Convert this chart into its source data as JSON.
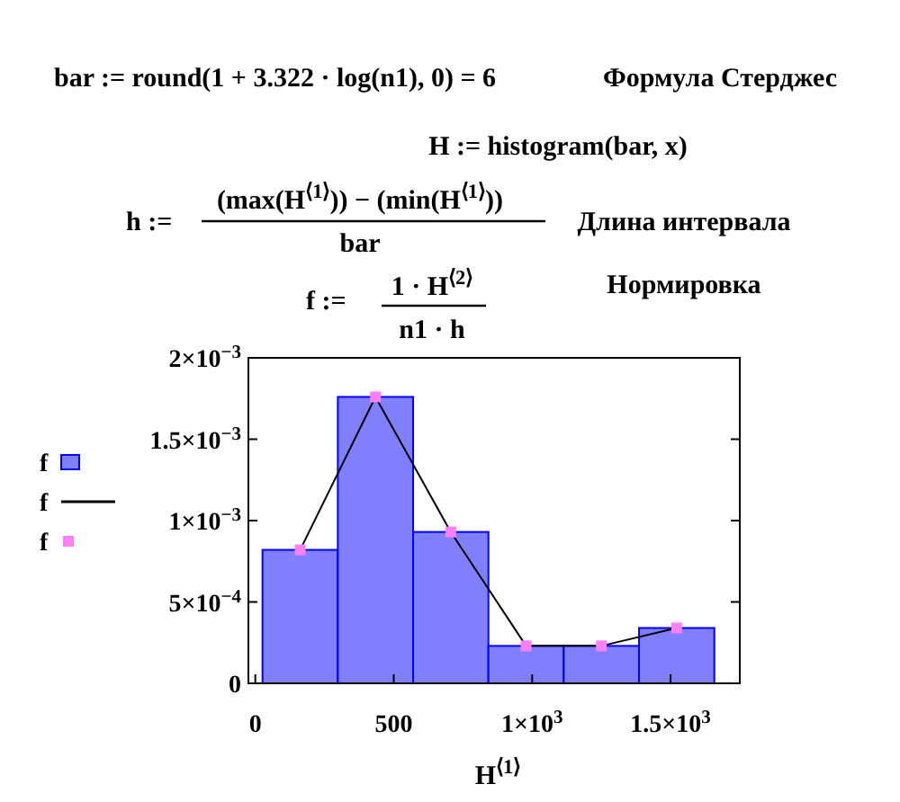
{
  "chart_data": {
    "type": "histogram",
    "xlabel": "H$^{⟨1⟩}$",
    "annotations": [
      "bar := round(1 + 3.322 · log(n1), 0) = 6",
      "Формула Стерджес",
      "H := histogram(bar, x)",
      "h :=",
      "(max(H$^{⟨1⟩}$)) − (min(H$^{⟨1⟩}$))",
      "bar",
      "Длина интервала",
      "f :=",
      "1 · H$^{⟨2⟩}$",
      "n1 · h",
      "Нормировка"
    ],
    "bins": [
      26,
      298,
      570,
      842,
      1114,
      1386,
      1658
    ],
    "xlim": [
      -25,
      1750
    ],
    "xticks": [
      0,
      500,
      {
        "value": 1000,
        "label": "1×10$^{3}$"
      },
      {
        "value": 1500,
        "label": "1.5×10$^{3}$"
      }
    ],
    "ylim": [
      0,
      0.002
    ],
    "yticks": [
      0,
      {
        "value": 0.0005,
        "label": "5×10$^{−4}$"
      },
      {
        "value": 0.001,
        "label": "1×10$^{−3}$"
      },
      {
        "value": 0.0015,
        "label": "1.5×10$^{−3}$"
      },
      {
        "value": 0.002,
        "label": "2×10$^{−3}$"
      }
    ],
    "grid": false,
    "legend": "left",
    "series": [
      {
        "name": "f",
        "color": "#8080ff",
        "values": [
          0.00082,
          0.00176,
          0.00093,
          0.00023,
          0.00023,
          0.00034
        ]
      },
      {
        "type": "line",
        "name": "f",
        "color": "#000000",
        "marker": "none",
        "x": [
          162,
          434,
          706,
          978,
          1250,
          1522
        ],
        "values": [
          0.00082,
          0.00176,
          0.00093,
          0.00023,
          0.00023,
          0.00034
        ]
      },
      {
        "type": "scatter",
        "name": "f",
        "color": "#ff80ff",
        "marker": "square",
        "x": [
          162,
          434,
          706,
          978,
          1250,
          1522
        ],
        "values": [
          0.00082,
          0.00176,
          0.00093,
          0.00023,
          0.00023,
          0.00034
        ]
      }
    ]
  }
}
